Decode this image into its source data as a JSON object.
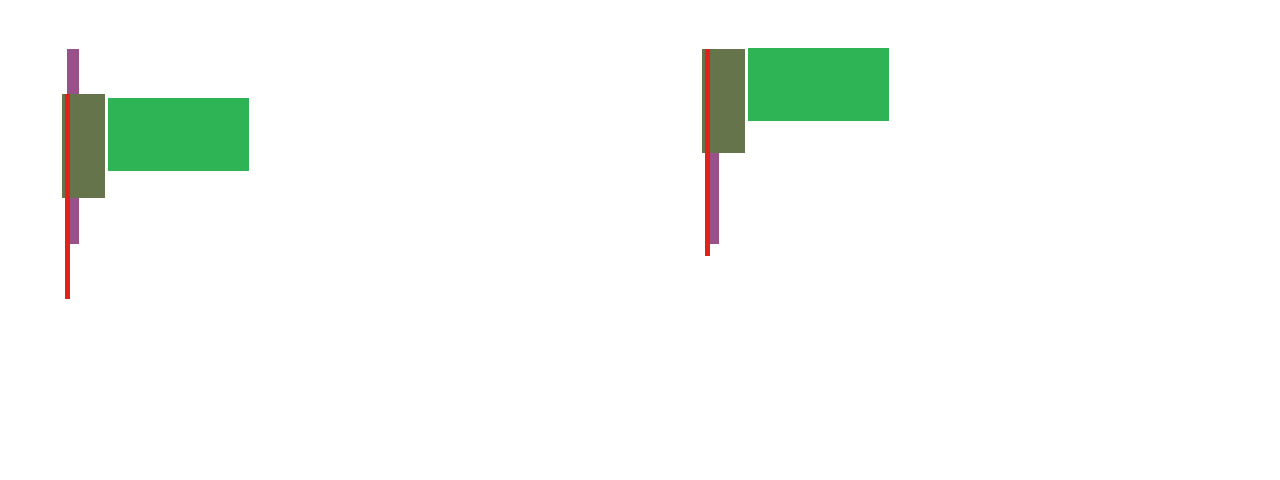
{
  "colors": {
    "purple": "#985289",
    "olive": "#65744A",
    "red": "#E1221A",
    "green": "#2EB355"
  },
  "groups": [
    {
      "name": "left-group",
      "shapes": [
        "purple-bar",
        "olive-box",
        "red-line",
        "green-box"
      ]
    },
    {
      "name": "right-group",
      "shapes": [
        "purple-bar",
        "olive-box",
        "red-line",
        "green-box"
      ]
    }
  ]
}
